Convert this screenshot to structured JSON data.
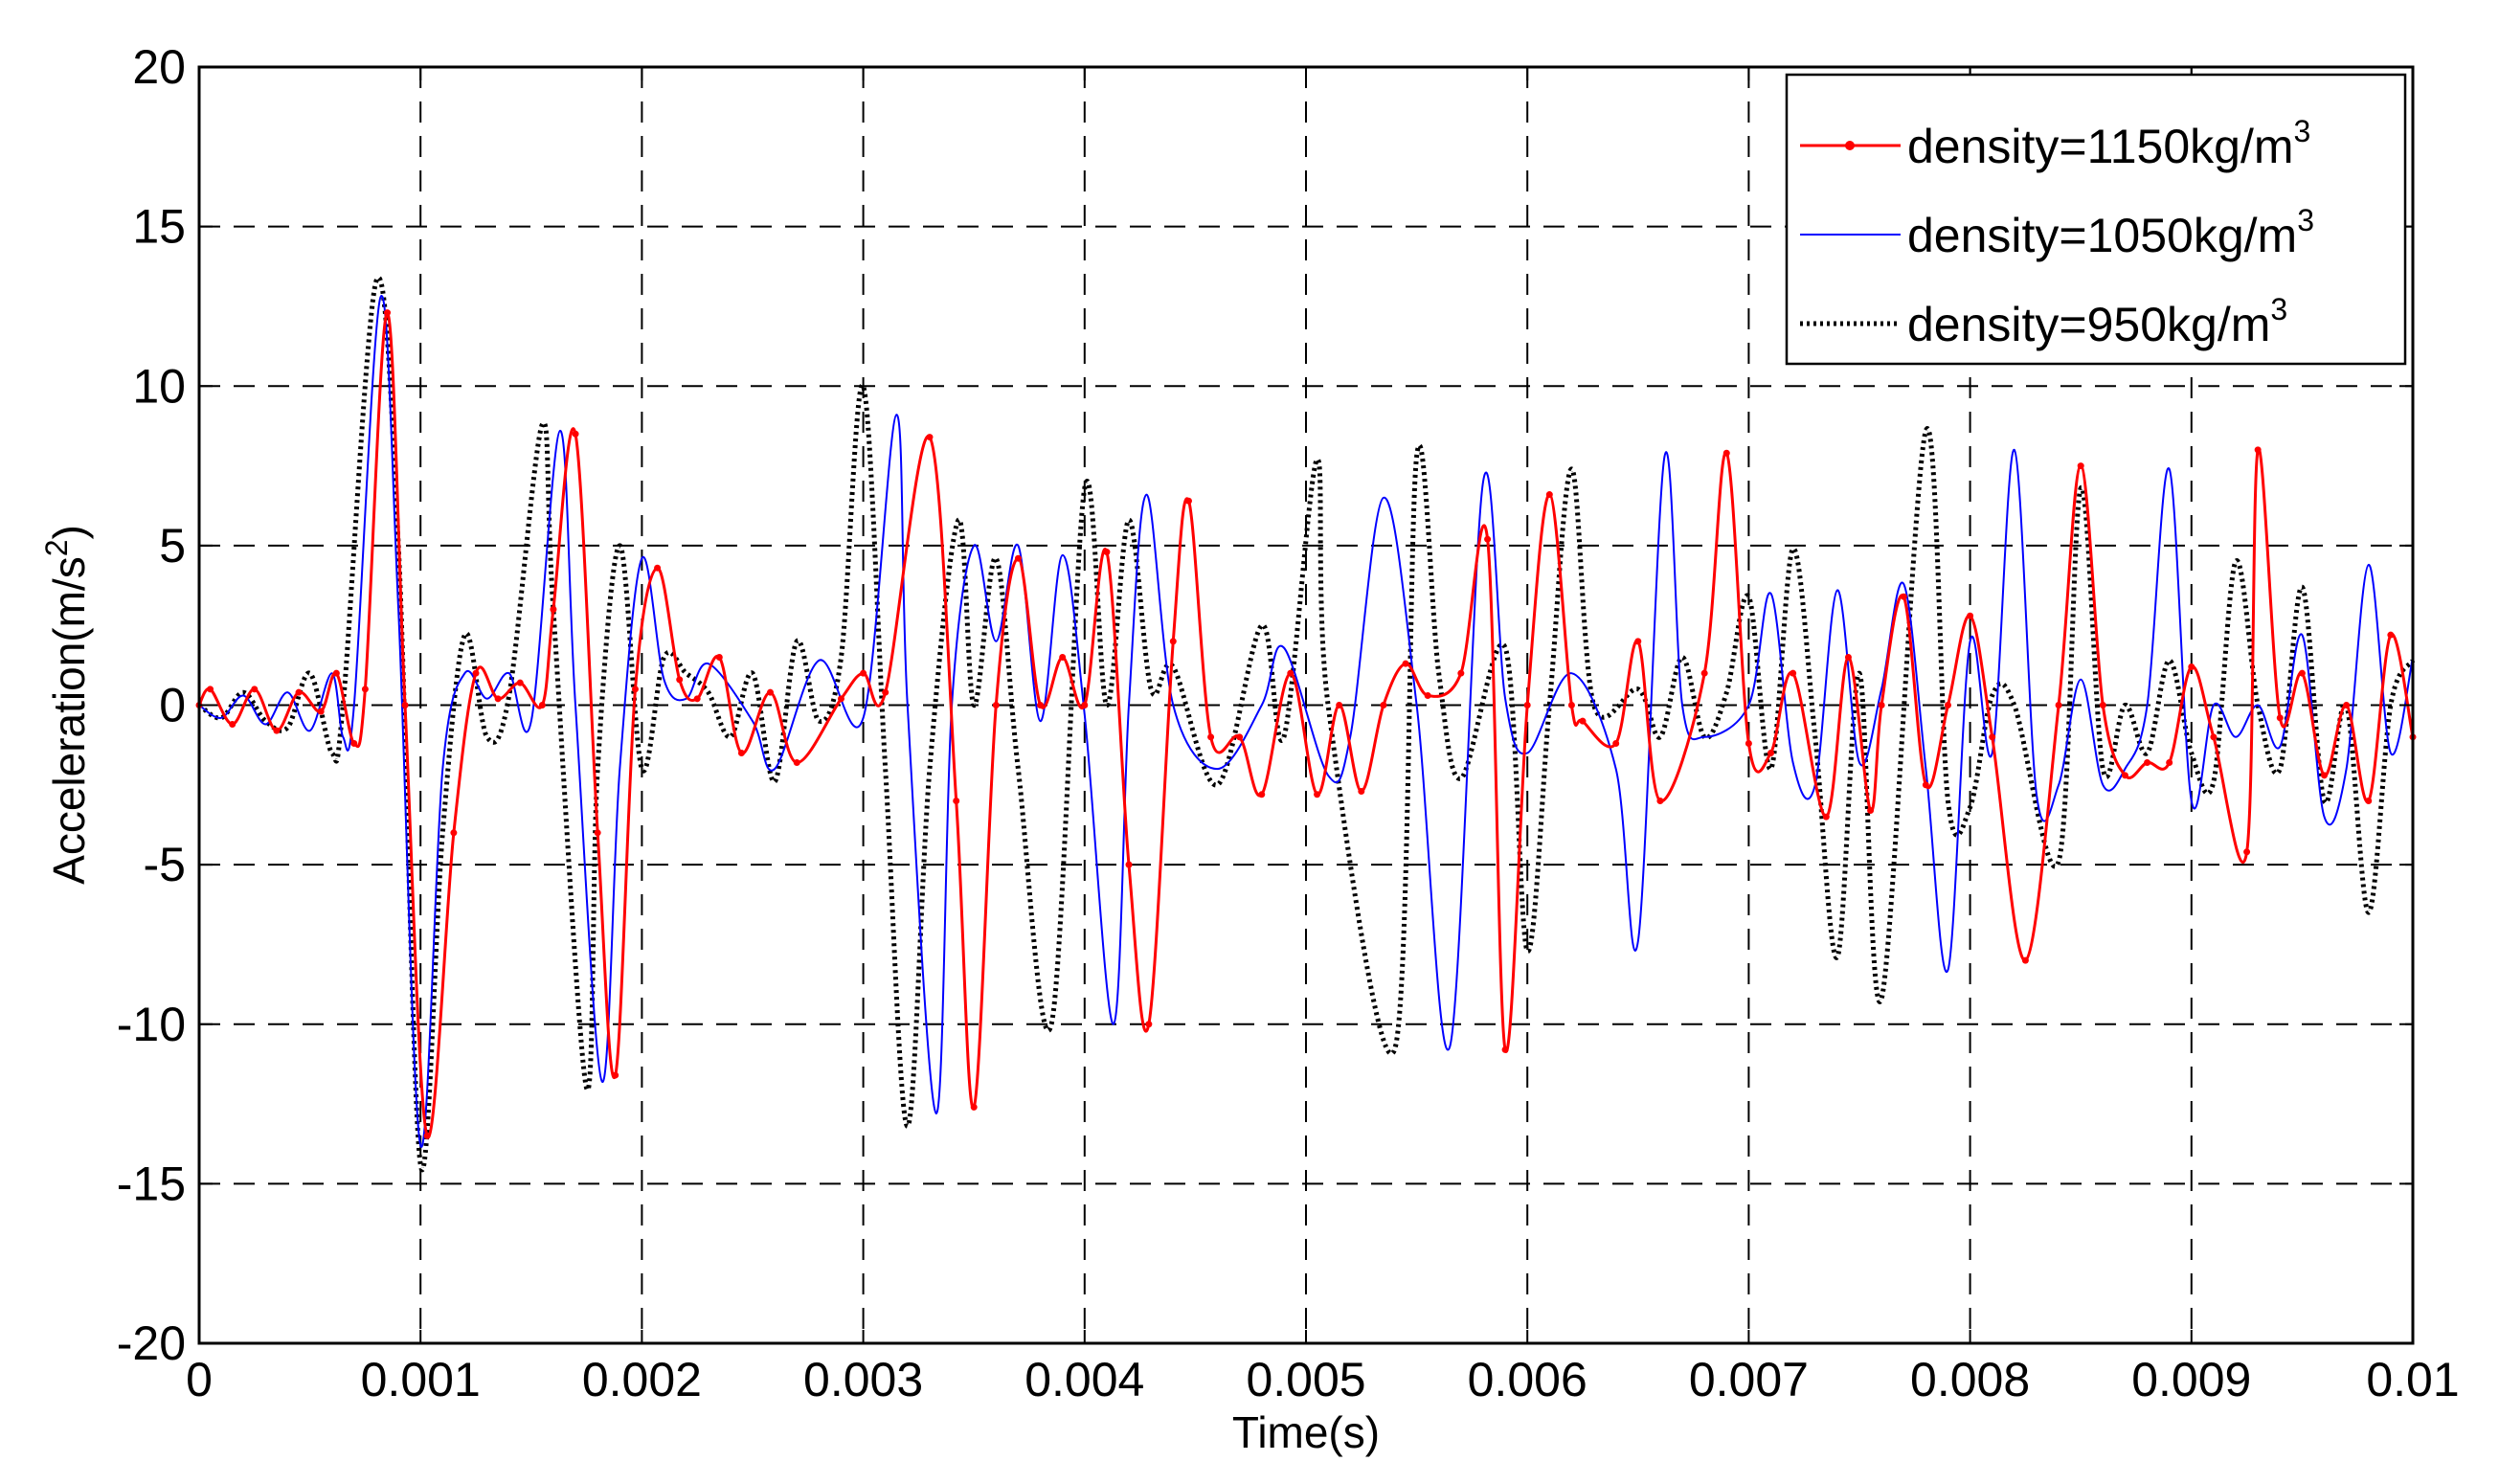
{
  "chart_data": {
    "type": "line",
    "title": "",
    "xlabel": "Time(s)",
    "ylabel": {
      "main": "Acceleration(m/s",
      "sup": "2",
      "close": ")"
    },
    "xlim": [
      0,
      0.01
    ],
    "ylim": [
      -20,
      20
    ],
    "xticks": [
      0,
      0.001,
      0.002,
      0.003,
      0.004,
      0.005,
      0.006,
      0.007,
      0.008,
      0.009,
      0.01
    ],
    "xtick_labels": [
      "0",
      "0.001",
      "0.002",
      "0.003",
      "0.004",
      "0.005",
      "0.006",
      "0.007",
      "0.008",
      "0.009",
      "0.01"
    ],
    "yticks": [
      -20,
      -15,
      -10,
      -5,
      0,
      5,
      10,
      15,
      20
    ],
    "ytick_labels": [
      "-20",
      "-15",
      "-10",
      "-5",
      "0",
      "5",
      "10",
      "15",
      "20"
    ],
    "grid": true,
    "legend_position": "top-right",
    "series": [
      {
        "name": "density=1150kg/m",
        "name_sup": "3",
        "color": "#ff0000",
        "style": "solid-with-dots",
        "points": [
          [
            0,
            0
          ],
          [
            5e-05,
            0.5
          ],
          [
            0.00015,
            -0.6
          ],
          [
            0.00025,
            0.5
          ],
          [
            0.00035,
            -0.8
          ],
          [
            0.00045,
            0.4
          ],
          [
            0.00055,
            -0.2
          ],
          [
            0.00062,
            1
          ],
          [
            0.0007,
            -1.2
          ],
          [
            0.00075,
            0.5
          ],
          [
            0.00085,
            12.3
          ],
          [
            0.00093,
            0
          ],
          [
            0.00103,
            -13.5
          ],
          [
            0.00115,
            -4
          ],
          [
            0.00125,
            1
          ],
          [
            0.00135,
            0.2
          ],
          [
            0.00145,
            0.7
          ],
          [
            0.00155,
            0
          ],
          [
            0.0016,
            3
          ],
          [
            0.0017,
            8.5
          ],
          [
            0.0018,
            -4
          ],
          [
            0.00188,
            -11.6
          ],
          [
            0.00197,
            0.5
          ],
          [
            0.00207,
            4.3
          ],
          [
            0.00217,
            0.8
          ],
          [
            0.00225,
            0.2
          ],
          [
            0.00235,
            1.5
          ],
          [
            0.00245,
            -1.5
          ],
          [
            0.00258,
            0.4
          ],
          [
            0.0027,
            -1.8
          ],
          [
            0.0029,
            0.2
          ],
          [
            0.003,
            1
          ],
          [
            0.0031,
            0.4
          ],
          [
            0.0033,
            8.4
          ],
          [
            0.00342,
            -3
          ],
          [
            0.0035,
            -12.6
          ],
          [
            0.0036,
            0
          ],
          [
            0.0037,
            4.6
          ],
          [
            0.0038,
            0
          ],
          [
            0.0039,
            1.5
          ],
          [
            0.004,
            0
          ],
          [
            0.0041,
            4.8
          ],
          [
            0.0042,
            -5
          ],
          [
            0.00429,
            -10
          ],
          [
            0.0044,
            2
          ],
          [
            0.00447,
            6.4
          ],
          [
            0.00457,
            -1
          ],
          [
            0.0047,
            -1
          ],
          [
            0.0048,
            -2.8
          ],
          [
            0.00493,
            1
          ],
          [
            0.00505,
            -2.8
          ],
          [
            0.00515,
            0
          ],
          [
            0.00525,
            -2.7
          ],
          [
            0.00535,
            0
          ],
          [
            0.00545,
            1.3
          ],
          [
            0.00555,
            0.3
          ],
          [
            0.0057,
            1
          ],
          [
            0.00582,
            5.2
          ],
          [
            0.0059,
            -10.8
          ],
          [
            0.006,
            0
          ],
          [
            0.0061,
            6.6
          ],
          [
            0.0062,
            0
          ],
          [
            0.00625,
            -0.5
          ],
          [
            0.0064,
            -1.2
          ],
          [
            0.0065,
            2
          ],
          [
            0.0066,
            -3
          ],
          [
            0.0068,
            1
          ],
          [
            0.0069,
            7.9
          ],
          [
            0.007,
            -1.2
          ],
          [
            0.0071,
            -1.5
          ],
          [
            0.0072,
            1
          ],
          [
            0.00735,
            -3.5
          ],
          [
            0.00745,
            1.5
          ],
          [
            0.00755,
            -3.3
          ],
          [
            0.0076,
            0
          ],
          [
            0.0077,
            3.4
          ],
          [
            0.0078,
            -2.5
          ],
          [
            0.0079,
            0
          ],
          [
            0.008,
            2.8
          ],
          [
            0.0081,
            -1
          ],
          [
            0.00825,
            -8
          ],
          [
            0.0084,
            0
          ],
          [
            0.0085,
            7.5
          ],
          [
            0.0086,
            0
          ],
          [
            0.0087,
            -2.2
          ],
          [
            0.0088,
            -1.8
          ],
          [
            0.0089,
            -1.8
          ],
          [
            0.009,
            1.2
          ],
          [
            0.0091,
            -1
          ],
          [
            0.00925,
            -4.6
          ],
          [
            0.0093,
            8
          ],
          [
            0.0094,
            -0.4
          ],
          [
            0.0095,
            1
          ],
          [
            0.0096,
            -2.2
          ],
          [
            0.0097,
            0
          ],
          [
            0.0098,
            -3
          ],
          [
            0.0099,
            2.2
          ],
          [
            0.01,
            -1
          ]
        ]
      },
      {
        "name": "density=1050kg/m",
        "name_sup": "3",
        "color": "#0000ff",
        "style": "solid",
        "points": [
          [
            0,
            0
          ],
          [
            0.0001,
            -0.4
          ],
          [
            0.0002,
            0.3
          ],
          [
            0.0003,
            -0.6
          ],
          [
            0.0004,
            0.4
          ],
          [
            0.0005,
            -0.8
          ],
          [
            0.0006,
            1
          ],
          [
            0.00065,
            -1
          ],
          [
            0.0007,
            0
          ],
          [
            0.00082,
            12.8
          ],
          [
            0.0009,
            3
          ],
          [
            0.001,
            -13.8
          ],
          [
            0.0011,
            -2
          ],
          [
            0.0012,
            1
          ],
          [
            0.0013,
            0.2
          ],
          [
            0.0014,
            1
          ],
          [
            0.0015,
            -0.5
          ],
          [
            0.00163,
            8.6
          ],
          [
            0.0017,
            0
          ],
          [
            0.00182,
            -11.8
          ],
          [
            0.0019,
            -2
          ],
          [
            0.002,
            4.6
          ],
          [
            0.0021,
            0.8
          ],
          [
            0.0022,
            0.2
          ],
          [
            0.0023,
            1.3
          ],
          [
            0.0025,
            -0.5
          ],
          [
            0.0026,
            -2
          ],
          [
            0.0028,
            1.4
          ],
          [
            0.003,
            -0.4
          ],
          [
            0.00315,
            9.1
          ],
          [
            0.0032,
            0
          ],
          [
            0.00333,
            -12.8
          ],
          [
            0.0034,
            0
          ],
          [
            0.0035,
            5
          ],
          [
            0.0036,
            2
          ],
          [
            0.0037,
            5
          ],
          [
            0.0038,
            -0.5
          ],
          [
            0.0039,
            4.7
          ],
          [
            0.004,
            -0.3
          ],
          [
            0.00413,
            -10
          ],
          [
            0.0042,
            0
          ],
          [
            0.00428,
            6.6
          ],
          [
            0.0044,
            0
          ],
          [
            0.0046,
            -2
          ],
          [
            0.0048,
            0
          ],
          [
            0.0049,
            1.8
          ],
          [
            0.0051,
            -2.2
          ],
          [
            0.0052,
            -1
          ],
          [
            0.00535,
            6.5
          ],
          [
            0.0055,
            0
          ],
          [
            0.00565,
            -10.7
          ],
          [
            0.0058,
            7
          ],
          [
            0.0059,
            0.2
          ],
          [
            0.006,
            -1.5
          ],
          [
            0.0062,
            1
          ],
          [
            0.0064,
            -2
          ],
          [
            0.0065,
            -7.4
          ],
          [
            0.00662,
            7.8
          ],
          [
            0.0067,
            0
          ],
          [
            0.0068,
            -1
          ],
          [
            0.007,
            0
          ],
          [
            0.0071,
            3.5
          ],
          [
            0.0072,
            -1.8
          ],
          [
            0.0073,
            -2.5
          ],
          [
            0.0074,
            3.6
          ],
          [
            0.0075,
            -1.8
          ],
          [
            0.0076,
            0.5
          ],
          [
            0.0077,
            3.8
          ],
          [
            0.0078,
            -2
          ],
          [
            0.0079,
            -8.3
          ],
          [
            0.008,
            2
          ],
          [
            0.0081,
            -1.5
          ],
          [
            0.0082,
            8
          ],
          [
            0.0083,
            -2.8
          ],
          [
            0.0084,
            -2.5
          ],
          [
            0.0085,
            0.8
          ],
          [
            0.0086,
            -2.5
          ],
          [
            0.0087,
            -2
          ],
          [
            0.0088,
            0
          ],
          [
            0.0089,
            7.4
          ],
          [
            0.009,
            -3
          ],
          [
            0.0091,
            0
          ],
          [
            0.0092,
            -1
          ],
          [
            0.0093,
            0
          ],
          [
            0.0094,
            -1.3
          ],
          [
            0.0095,
            2.2
          ],
          [
            0.0096,
            -3.5
          ],
          [
            0.0097,
            -2
          ],
          [
            0.0098,
            4.4
          ],
          [
            0.0099,
            -1.5
          ],
          [
            0.01,
            1.5
          ]
        ]
      },
      {
        "name": "density=950kg/m",
        "name_sup": "3",
        "color": "#000000",
        "style": "dotted",
        "points": [
          [
            0,
            0
          ],
          [
            0.0001,
            -0.4
          ],
          [
            0.0002,
            0.4
          ],
          [
            0.0003,
            -0.5
          ],
          [
            0.0004,
            -0.7
          ],
          [
            0.0005,
            1
          ],
          [
            0.0006,
            -1.5
          ],
          [
            0.00065,
            0
          ],
          [
            0.0008,
            13.3
          ],
          [
            0.0009,
            5
          ],
          [
            0.001,
            -14.4
          ],
          [
            0.0011,
            -4
          ],
          [
            0.0012,
            2.2
          ],
          [
            0.0013,
            -1
          ],
          [
            0.0014,
            0.3
          ],
          [
            0.00155,
            8.8
          ],
          [
            0.0016,
            3
          ],
          [
            0.00175,
            -12
          ],
          [
            0.0018,
            -2
          ],
          [
            0.0019,
            5
          ],
          [
            0.002,
            -2
          ],
          [
            0.0021,
            1.5
          ],
          [
            0.0022,
            1
          ],
          [
            0.0023,
            0.4
          ],
          [
            0.0024,
            -1
          ],
          [
            0.0025,
            1
          ],
          [
            0.0026,
            -2.4
          ],
          [
            0.0027,
            2
          ],
          [
            0.0028,
            -0.5
          ],
          [
            0.0029,
            1.5
          ],
          [
            0.003,
            10
          ],
          [
            0.0031,
            -2
          ],
          [
            0.0032,
            -13.2
          ],
          [
            0.0033,
            -2
          ],
          [
            0.00343,
            5.8
          ],
          [
            0.0035,
            0
          ],
          [
            0.0036,
            4.6
          ],
          [
            0.0037,
            -2
          ],
          [
            0.00385,
            -10
          ],
          [
            0.004,
            6.8
          ],
          [
            0.0041,
            0
          ],
          [
            0.0042,
            5.8
          ],
          [
            0.0043,
            0.5
          ],
          [
            0.0044,
            1.2
          ],
          [
            0.0046,
            -2.5
          ],
          [
            0.0048,
            2.5
          ],
          [
            0.0049,
            -1
          ],
          [
            0.00505,
            7.7
          ],
          [
            0.0051,
            0
          ],
          [
            0.0054,
            -10.8
          ],
          [
            0.0055,
            7.8
          ],
          [
            0.0056,
            1
          ],
          [
            0.0057,
            -2.3
          ],
          [
            0.0059,
            1.8
          ],
          [
            0.006,
            -7.7
          ],
          [
            0.0061,
            0
          ],
          [
            0.0062,
            7.4
          ],
          [
            0.0063,
            0
          ],
          [
            0.0065,
            0.5
          ],
          [
            0.0066,
            -1
          ],
          [
            0.0067,
            1.5
          ],
          [
            0.0068,
            -1
          ],
          [
            0.0069,
            0.4
          ],
          [
            0.007,
            3.4
          ],
          [
            0.0071,
            -2
          ],
          [
            0.0072,
            4.9
          ],
          [
            0.0073,
            -1
          ],
          [
            0.0074,
            -7.9
          ],
          [
            0.0075,
            1
          ],
          [
            0.0076,
            -9.2
          ],
          [
            0.0078,
            8.6
          ],
          [
            0.0079,
            -3
          ],
          [
            0.008,
            -3.2
          ],
          [
            0.0081,
            0.3
          ],
          [
            0.0082,
            0
          ],
          [
            0.0084,
            -4.9
          ],
          [
            0.0085,
            6.8
          ],
          [
            0.0086,
            -2
          ],
          [
            0.0087,
            0
          ],
          [
            0.0088,
            -1.5
          ],
          [
            0.0089,
            1.4
          ],
          [
            0.009,
            -1.5
          ],
          [
            0.0091,
            -2.4
          ],
          [
            0.0092,
            4.5
          ],
          [
            0.0093,
            0
          ],
          [
            0.0094,
            -2
          ],
          [
            0.0095,
            3.7
          ],
          [
            0.0096,
            -3
          ],
          [
            0.0097,
            0
          ],
          [
            0.0098,
            -6.5
          ],
          [
            0.0099,
            0
          ],
          [
            0.01,
            1.4
          ]
        ]
      }
    ]
  }
}
